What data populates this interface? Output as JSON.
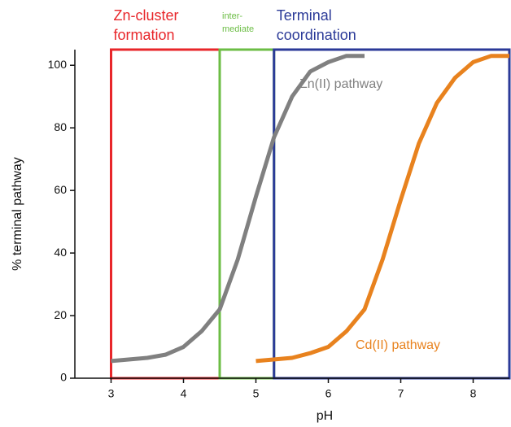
{
  "chart_data": {
    "type": "line",
    "xlabel": "pH",
    "ylabel": "% terminal pathway",
    "xlim": [
      2.5,
      8.5
    ],
    "xticks": [
      3,
      4,
      5,
      6,
      7,
      8
    ],
    "ylim": [
      0,
      105
    ],
    "yticks": [
      0,
      20,
      40,
      60,
      80,
      100
    ],
    "grid": false,
    "regions": [
      {
        "label": [
          "Zn-cluster",
          "formation"
        ],
        "xmin": 3,
        "xmax": 4.5,
        "color": "#e8262a"
      },
      {
        "label": [
          "inter-",
          "mediate"
        ],
        "xmin": 4.5,
        "xmax": 5.25,
        "color": "#6cbd45"
      },
      {
        "label": [
          "Terminal",
          "coordination"
        ],
        "xmin": 5.25,
        "xmax": 8.5,
        "color": "#2b3a98"
      }
    ],
    "series": [
      {
        "name": "Zn(II) pathway",
        "color": "#808080",
        "x": [
          3,
          3.5,
          3.75,
          4,
          4.25,
          4.5,
          4.75,
          5,
          5.25,
          5.5,
          5.75,
          6,
          6.25,
          6.5
        ],
        "values": [
          5.5,
          6.5,
          7.5,
          10,
          15,
          22,
          38,
          58,
          77,
          90,
          98,
          101,
          103,
          103
        ]
      },
      {
        "name": "Cd(II) pathway",
        "color": "#e8821e",
        "x": [
          5,
          5.5,
          5.75,
          6,
          6.25,
          6.5,
          6.75,
          7,
          7.25,
          7.5,
          7.75,
          8,
          8.25,
          8.5
        ],
        "values": [
          5.5,
          6.5,
          8,
          10,
          15,
          22,
          38,
          57,
          75,
          88,
          96,
          101,
          103,
          103
        ]
      }
    ]
  }
}
